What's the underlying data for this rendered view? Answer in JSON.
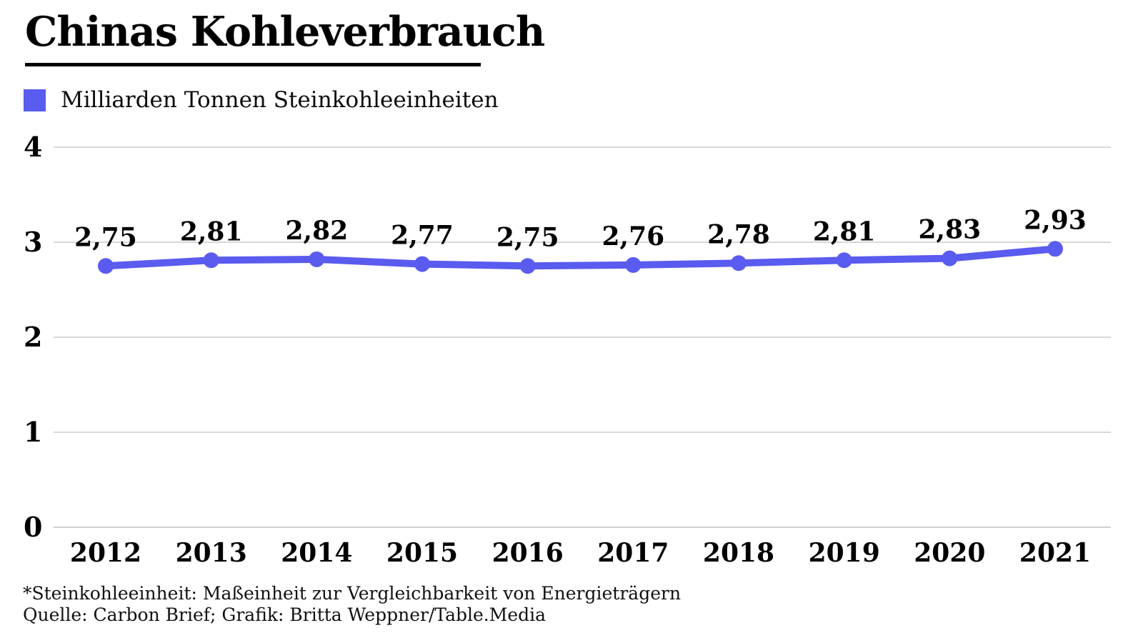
{
  "header": {
    "title": "Chinas Kohleverbrauch"
  },
  "legend": {
    "swatch_color": "#5a5bef",
    "label": "Milliarden Tonnen Steinkohleeinheiten"
  },
  "chart_data": {
    "type": "line",
    "title": "Chinas Kohleverbrauch",
    "categories": [
      "2012",
      "2013",
      "2014",
      "2015",
      "2016",
      "2017",
      "2018",
      "2019",
      "2020",
      "2021"
    ],
    "series": [
      {
        "name": "Milliarden Tonnen Steinkohleeinheiten",
        "values": [
          2.75,
          2.81,
          2.82,
          2.77,
          2.75,
          2.76,
          2.78,
          2.81,
          2.83,
          2.93
        ],
        "value_labels": [
          "2,75",
          "2,81",
          "2,82",
          "2,77",
          "2,75",
          "2,76",
          "2,78",
          "2,81",
          "2,83",
          "2,93"
        ],
        "color": "#5a5bef"
      }
    ],
    "xlabel": "",
    "ylabel": "",
    "ylim": [
      0,
      4
    ],
    "y_ticks": [
      0,
      1,
      2,
      3,
      4
    ],
    "y_tick_labels": [
      "0",
      "1",
      "2",
      "3",
      "4"
    ],
    "grid": true,
    "gridline_color": "#d7d7d7",
    "zero_line_color": "#cfcfcf",
    "legend_position": "top-left"
  },
  "footer": {
    "note": "*Steinkohleeinheit: Maßeinheit zur Vergleichbarkeit von Energieträgern",
    "source": "Quelle: Carbon Brief; Grafik: Britta Weppner/Table.Media"
  }
}
